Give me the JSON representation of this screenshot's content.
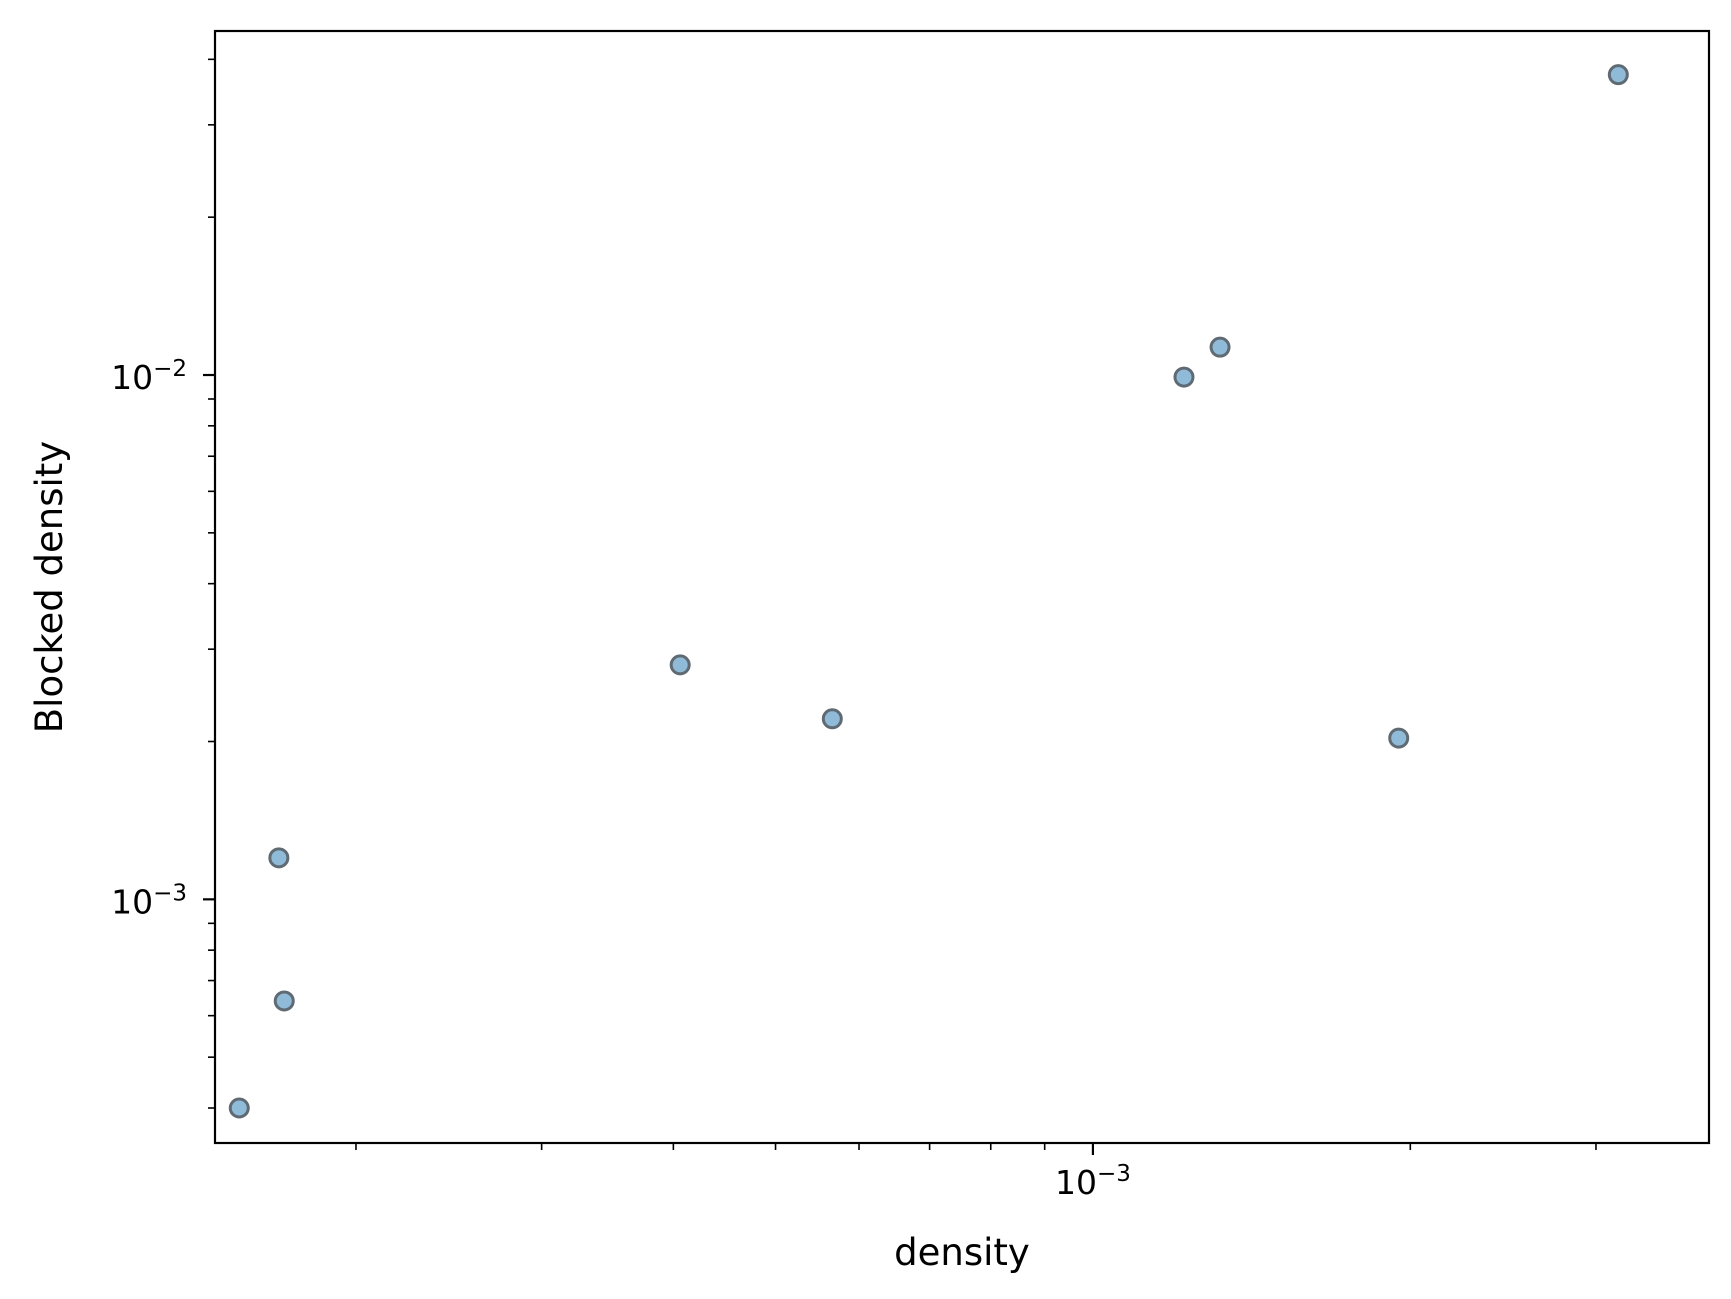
{
  "chart_data": {
    "type": "scatter",
    "xlabel": "density",
    "ylabel": "Blocked density",
    "x_scale": "log",
    "y_scale": "log",
    "xlim": [
      0.000147,
      0.00384
    ],
    "ylim": [
      0.000343,
      0.0453
    ],
    "grid": false,
    "legend": "none",
    "x_ticks": [
      {
        "value": 0.001,
        "base": "10",
        "exp": "−3"
      }
    ],
    "y_ticks": [
      {
        "value": 0.001,
        "base": "10",
        "exp": "−3"
      },
      {
        "value": 0.01,
        "base": "10",
        "exp": "−2"
      }
    ],
    "points": [
      {
        "x": 0.000155,
        "y": 0.0004
      },
      {
        "x": 0.000169,
        "y": 0.0012
      },
      {
        "x": 0.000171,
        "y": 0.00064
      },
      {
        "x": 0.000406,
        "y": 0.0028
      },
      {
        "x": 0.000566,
        "y": 0.00221
      },
      {
        "x": 0.00122,
        "y": 0.00991
      },
      {
        "x": 0.00132,
        "y": 0.0113
      },
      {
        "x": 0.00195,
        "y": 0.00203
      },
      {
        "x": 0.00315,
        "y": 0.0374
      }
    ],
    "marker_color": "#8fbbd9",
    "marker_edge": "#5f6a73"
  }
}
